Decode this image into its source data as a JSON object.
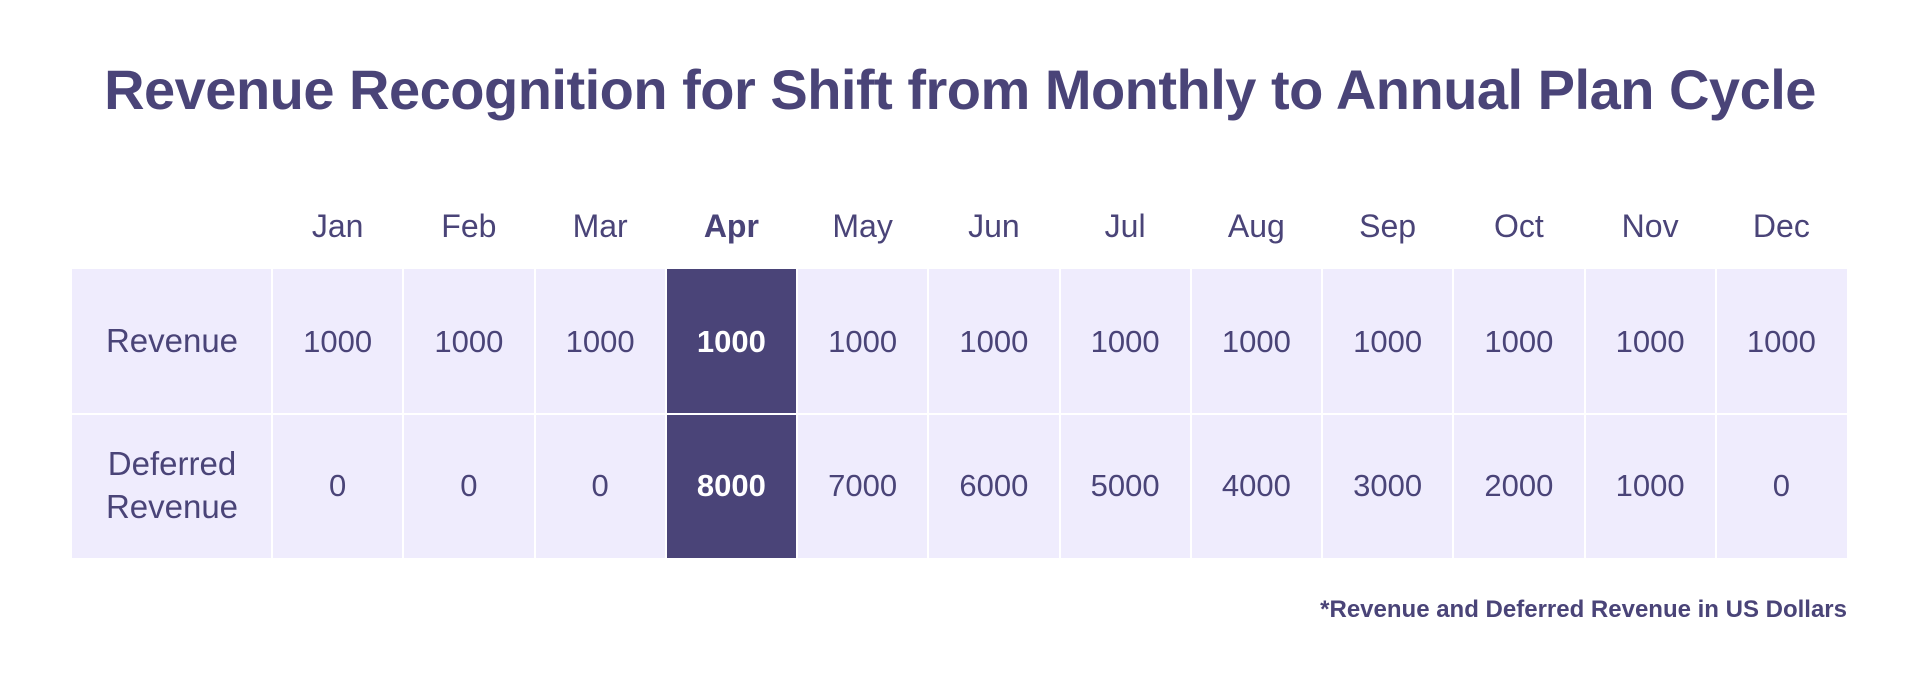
{
  "chart_data": {
    "type": "table",
    "title": "Revenue Recognition for Shift from Monthly to Annual Plan Cycle",
    "columns": [
      "Jan",
      "Feb",
      "Mar",
      "Apr",
      "May",
      "Jun",
      "Jul",
      "Aug",
      "Sep",
      "Oct",
      "Nov",
      "Dec"
    ],
    "highlighted_column": "Apr",
    "rows": [
      {
        "label": "Revenue",
        "values": [
          1000,
          1000,
          1000,
          1000,
          1000,
          1000,
          1000,
          1000,
          1000,
          1000,
          1000,
          1000
        ]
      },
      {
        "label": "Deferred\nRevenue",
        "values": [
          0,
          0,
          0,
          8000,
          7000,
          6000,
          5000,
          4000,
          3000,
          2000,
          1000,
          0
        ]
      }
    ],
    "footnote": "*Revenue and Deferred Revenue in US Dollars",
    "colors": {
      "text": "#4a4478",
      "row_background": "#efecfd",
      "highlight_background": "#4a4478",
      "highlight_text": "#ffffff"
    }
  }
}
